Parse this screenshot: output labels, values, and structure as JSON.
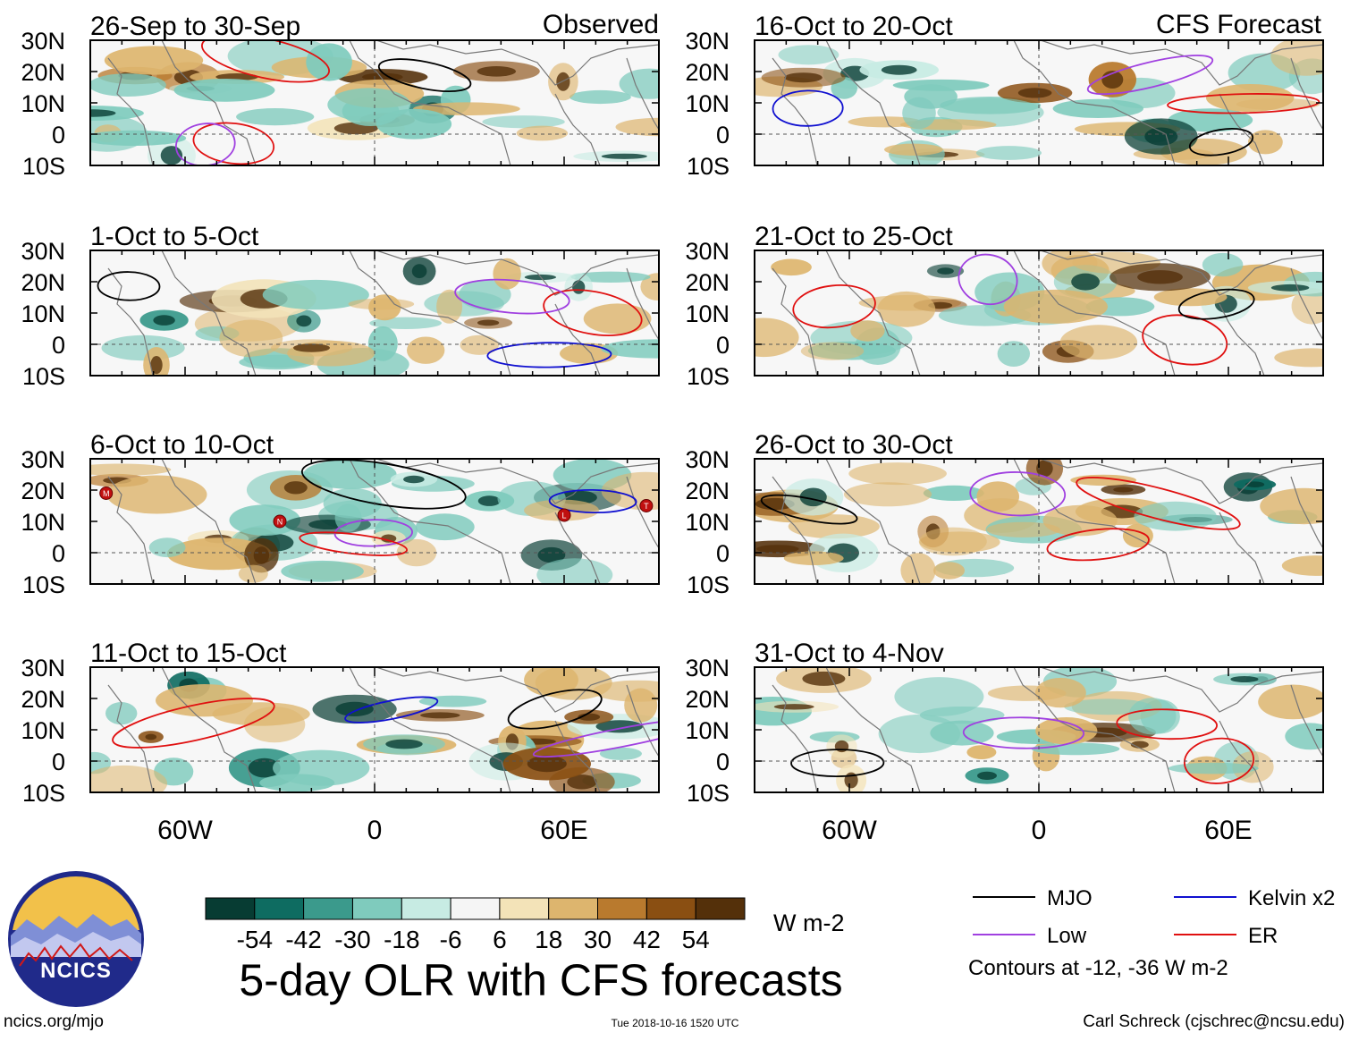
{
  "figure": {
    "title": "5-day OLR with CFS forecasts",
    "url": "ncics.org/mjo",
    "timestamp": "Tue 2018-10-16 1520 UTC",
    "credit": "Carl Schreck (cjschrec@ncsu.edu)",
    "logo_text": "NCICS"
  },
  "chart_data": {
    "type": "heatmap",
    "variable": "OLR anomaly",
    "units": "W m-2",
    "column_headers": [
      "Observed",
      "CFS Forecast"
    ],
    "lat_ticks": [
      "30N",
      "20N",
      "10N",
      "0",
      "10S"
    ],
    "lon_ticks": [
      "60W",
      "0",
      "60E"
    ],
    "lat_range": [
      -10,
      30
    ],
    "lon_range": [
      -90,
      90
    ],
    "panels": [
      {
        "title": "26-Sep to 30-Sep",
        "column": "Observed"
      },
      {
        "title": "1-Oct to 5-Oct",
        "column": "Observed"
      },
      {
        "title": "6-Oct to 10-Oct",
        "column": "Observed"
      },
      {
        "title": "11-Oct to 15-Oct",
        "column": "Observed"
      },
      {
        "title": "16-Oct to 20-Oct",
        "column": "CFS Forecast"
      },
      {
        "title": "21-Oct to 25-Oct",
        "column": "CFS Forecast"
      },
      {
        "title": "26-Oct to 30-Oct",
        "column": "CFS Forecast"
      },
      {
        "title": "31-Oct to 4-Nov",
        "column": "CFS Forecast"
      }
    ],
    "colorbar": {
      "labels": [
        "-54",
        "-42",
        "-30",
        "-18",
        "-6",
        "6",
        "18",
        "30",
        "42",
        "54"
      ],
      "colors": [
        "#073c33",
        "#0e6c61",
        "#3b9a8c",
        "#7fcbbd",
        "#c7ebe3",
        "#f5f5f5",
        "#f3e3b8",
        "#ddb56e",
        "#b97a2e",
        "#8a4f12",
        "#54300a"
      ],
      "units": "W m-2"
    },
    "legend": [
      {
        "label": "MJO",
        "color": "#000000"
      },
      {
        "label": "Kelvin x2",
        "color": "#1010d0"
      },
      {
        "label": "Low",
        "color": "#a040e0"
      },
      {
        "label": "ER",
        "color": "#e01010"
      }
    ],
    "contour_note": "Contours at -12, -36 W m-2",
    "storm_markers": [
      "M",
      "N",
      "L",
      "T"
    ]
  }
}
